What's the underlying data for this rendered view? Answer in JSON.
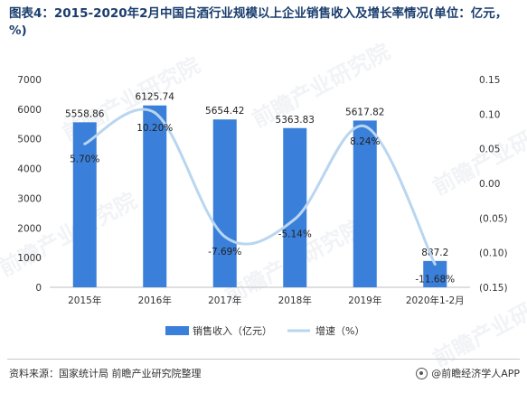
{
  "title": "图表4：2015-2020年2月中国白酒行业规模以上企业销售收入及增长率情况(单位：亿元，%)",
  "source": "资料来源：国家统计局 前瞻产业研究院整理",
  "brand": "@前瞻经济学人APP",
  "watermark": "前瞻产业研究院",
  "colors": {
    "bar": "#3a7fd9",
    "line": "#b9d6f0",
    "axis_text": "#333333",
    "title": "#1a3d6d"
  },
  "chart_data": {
    "type": "bar",
    "categories": [
      "2015年",
      "2016年",
      "2017年",
      "2018年",
      "2019年",
      "2020年1-2月"
    ],
    "series": [
      {
        "name": "销售收入（亿元）",
        "type": "bar",
        "axis": "left",
        "values": [
          5558.86,
          6125.74,
          5654.42,
          5363.83,
          5617.82,
          887.2
        ],
        "labels": [
          "5558.86",
          "6125.74",
          "5654.42",
          "5363.83",
          "5617.82",
          "887.2"
        ]
      },
      {
        "name": "增速（%）",
        "type": "line",
        "axis": "right",
        "values": [
          0.057,
          0.102,
          -0.0769,
          -0.0514,
          0.0824,
          -0.1168
        ],
        "labels": [
          "5.70%",
          "10.20%",
          "-7.69%",
          "-5.14%",
          "8.24%",
          "-11.68%"
        ]
      }
    ],
    "left_axis": {
      "ylim": [
        0,
        7000
      ],
      "ticks": [
        0,
        1000,
        2000,
        3000,
        4000,
        5000,
        6000,
        7000
      ],
      "tick_labels": [
        "0",
        "1000",
        "2000",
        "3000",
        "4000",
        "5000",
        "6000",
        "7000"
      ]
    },
    "right_axis": {
      "ylim": [
        -0.15,
        0.15
      ],
      "ticks": [
        0.15,
        0.1,
        0.05,
        0,
        -0.05,
        -0.1,
        -0.15
      ],
      "tick_labels": [
        "0.15",
        "0.10",
        "0.05",
        "0.00",
        "(0.05)",
        "(0.10)",
        "(0.15)"
      ]
    },
    "legend": {
      "position": "bottom",
      "entries": [
        "销售收入（亿元）",
        "增速（%）"
      ]
    },
    "grid": false
  }
}
